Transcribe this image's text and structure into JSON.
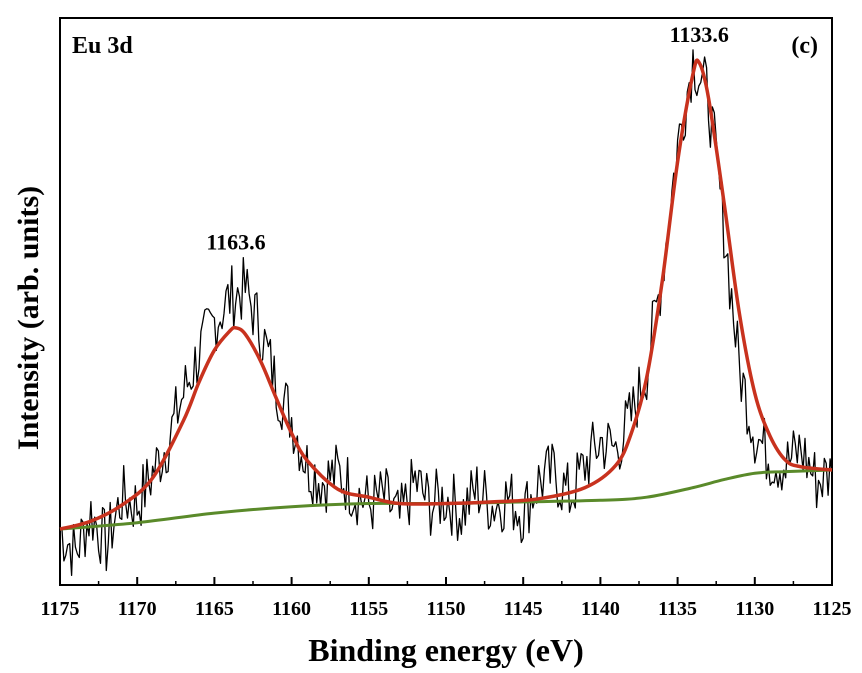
{
  "chart_data": {
    "type": "line",
    "title": "",
    "xlabel": "Binding energy (eV)",
    "ylabel": "Intensity (arb. units)",
    "panel_tag": "Eu 3d",
    "panel_letter": "(c)",
    "xlim": [
      1175,
      1125
    ],
    "x_reversed": true,
    "ylim": [
      -0.35,
      3.2
    ],
    "y_ticks_shown": false,
    "grid": false,
    "x_ticks": [
      "1175",
      "1170",
      "1165",
      "1160",
      "1155",
      "1150",
      "1145",
      "1140",
      "1135",
      "1130",
      "1125"
    ],
    "annotations": [
      {
        "text": "1163.6",
        "x": 1163.6,
        "y": 1.75
      },
      {
        "text": "1133.6",
        "x": 1133.6,
        "y": 3.05
      }
    ],
    "series": [
      {
        "color": "#000000",
        "style": "noisy-raw",
        "x": [
          1175,
          1174,
          1173,
          1172,
          1171,
          1170,
          1169,
          1168,
          1167,
          1166,
          1165,
          1164,
          1163,
          1162,
          1161,
          1160,
          1159,
          1158,
          1157,
          1156,
          1155,
          1154,
          1153,
          1152,
          1151,
          1150,
          1149,
          1148,
          1147,
          1146,
          1145,
          1144,
          1143,
          1142,
          1141,
          1140,
          1139,
          1138,
          1137,
          1136,
          1135,
          1134,
          1133,
          1132,
          1131,
          1130,
          1129,
          1128,
          1127,
          1126,
          1125
        ],
        "y": [
          0.0,
          -0.15,
          0.1,
          -0.1,
          0.2,
          0.15,
          0.35,
          0.55,
          0.85,
          1.1,
          1.3,
          1.45,
          1.5,
          1.25,
          0.9,
          0.7,
          0.4,
          0.3,
          0.35,
          0.25,
          0.15,
          0.2,
          0.05,
          0.3,
          0.15,
          0.2,
          0.1,
          0.25,
          0.15,
          0.2,
          0.1,
          0.3,
          0.35,
          0.2,
          0.4,
          0.55,
          0.5,
          0.7,
          1.0,
          1.6,
          2.4,
          2.95,
          2.7,
          1.9,
          1.0,
          0.6,
          0.45,
          0.4,
          0.5,
          0.3,
          0.35
        ]
      },
      {
        "color": "#c8321e",
        "style": "fit",
        "x": [
          1175,
          1173,
          1171,
          1169,
          1167,
          1166,
          1165,
          1164,
          1163.6,
          1163,
          1162,
          1161,
          1160,
          1159,
          1157,
          1155,
          1153,
          1150,
          1147,
          1144,
          1141,
          1139,
          1138,
          1137,
          1136,
          1135,
          1134,
          1133.6,
          1133,
          1132,
          1131,
          1130,
          1129,
          1128,
          1127,
          1125
        ],
        "y": [
          0.0,
          0.05,
          0.15,
          0.32,
          0.68,
          0.92,
          1.12,
          1.24,
          1.26,
          1.22,
          1.05,
          0.82,
          0.6,
          0.43,
          0.25,
          0.2,
          0.16,
          0.16,
          0.17,
          0.19,
          0.26,
          0.4,
          0.6,
          0.95,
          1.55,
          2.3,
          2.85,
          2.92,
          2.7,
          2.05,
          1.35,
          0.85,
          0.58,
          0.43,
          0.39,
          0.37
        ]
      },
      {
        "color": "#5a8a2a",
        "style": "background",
        "x": [
          1175,
          1170,
          1165,
          1160,
          1155,
          1150,
          1145,
          1140,
          1137,
          1134,
          1132,
          1130,
          1128,
          1125
        ],
        "y": [
          0.0,
          0.04,
          0.1,
          0.14,
          0.16,
          0.16,
          0.17,
          0.18,
          0.2,
          0.26,
          0.31,
          0.35,
          0.36,
          0.37
        ]
      }
    ]
  }
}
